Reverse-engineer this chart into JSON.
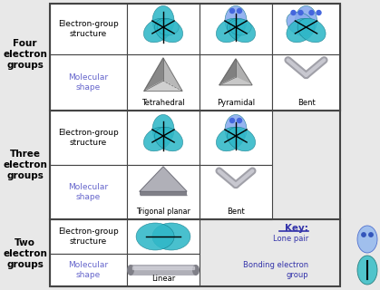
{
  "bg_color": "#e8e8e8",
  "cell_bg": "#ffffff",
  "border_color": "#444444",
  "label_color": "#6666cc",
  "key_color": "#3333aa",
  "teal_bond": "#30b8c8",
  "teal_lone": "#88aaee",
  "gray_shape": "#a0a0a8",
  "gray_dark": "#707078",
  "gray_mid": "#909098",
  "row_labels": [
    "Four\nelectron\ngroups",
    "Three\nelectron\ngroups",
    "Two\nelectron\ngroups"
  ],
  "desc_labels": [
    "Electron-group\nstructure",
    "Molecular\nshape"
  ],
  "shape_labels_r1": [
    "Tetrahedral",
    "Pyramidal",
    "Bent"
  ],
  "shape_labels_r2": [
    "Trigonal planar",
    "Bent"
  ],
  "shape_labels_r3": [
    "Linear"
  ],
  "key_title": "Key:",
  "lone_pair_label": "Lone pair",
  "bonding_label": "Bonding electron\ngroup",
  "figw": 4.19,
  "figh": 3.2,
  "dpi": 100
}
